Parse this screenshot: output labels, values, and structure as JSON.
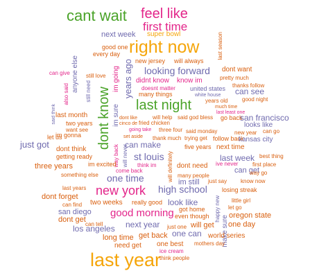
{
  "palette": {
    "green": "#4aa329",
    "magenta": "#e3258a",
    "orange": "#f5a50a",
    "purple": "#6f6aae",
    "dark_orange": "#d95f0e"
  },
  "words": [
    {
      "text": "cant wait",
      "color": "green"
    },
    {
      "text": "feel like",
      "color": "magenta"
    },
    {
      "text": "first time",
      "color": "magenta"
    },
    {
      "text": "next week",
      "color": "purple"
    },
    {
      "text": "super bowl",
      "color": "orange"
    },
    {
      "text": "last season",
      "color": "dark_orange"
    },
    {
      "text": "good one",
      "color": "dark_orange"
    },
    {
      "text": "every day",
      "color": "dark_orange"
    },
    {
      "text": "right now",
      "color": "orange"
    },
    {
      "text": "new jersey",
      "color": "dark_orange"
    },
    {
      "text": "will always",
      "color": "dark_orange"
    },
    {
      "text": "dont want",
      "color": "dark_orange"
    },
    {
      "text": "pretty much",
      "color": "dark_orange"
    },
    {
      "text": "thanks follow",
      "color": "dark_orange"
    },
    {
      "text": "can give",
      "color": "magenta"
    },
    {
      "text": "still love",
      "color": "dark_orange"
    },
    {
      "text": "looking forward",
      "color": "purple"
    },
    {
      "text": "didnt know",
      "color": "magenta"
    },
    {
      "text": "know im",
      "color": "magenta"
    },
    {
      "text": "doesnt matter",
      "color": "magenta"
    },
    {
      "text": "united states",
      "color": "purple"
    },
    {
      "text": "can see",
      "color": "purple"
    },
    {
      "text": "white house",
      "color": "purple"
    },
    {
      "text": "good night",
      "color": "dark_orange"
    },
    {
      "text": "many things",
      "color": "dark_orange"
    },
    {
      "text": "years old",
      "color": "dark_orange"
    },
    {
      "text": "also said",
      "color": "magenta"
    },
    {
      "text": "anyone else",
      "color": "purple"
    },
    {
      "text": "im going",
      "color": "magenta"
    },
    {
      "text": "still need",
      "color": "purple"
    },
    {
      "text": "years ago",
      "color": "purple"
    },
    {
      "text": "last night",
      "color": "green"
    },
    {
      "text": "much time",
      "color": "dark_orange"
    },
    {
      "text": "last least one",
      "color": "magenta"
    },
    {
      "text": "said think",
      "color": "purple"
    },
    {
      "text": "dont know",
      "color": "green"
    },
    {
      "text": "im sure",
      "color": "purple"
    },
    {
      "text": "dont like",
      "color": "dark_orange"
    },
    {
      "text": "will help",
      "color": "dark_orange"
    },
    {
      "text": "said god bless",
      "color": "dark_orange"
    },
    {
      "text": "go back",
      "color": "dark_orange"
    },
    {
      "text": "san francisco",
      "color": "purple"
    },
    {
      "text": "last month",
      "color": "dark_orange"
    },
    {
      "text": "cinco de",
      "color": "dark_orange"
    },
    {
      "text": "fried chicken",
      "color": "dark_orange"
    },
    {
      "text": "looks like",
      "color": "purple"
    },
    {
      "text": "two years",
      "color": "dark_orange"
    },
    {
      "text": "want see",
      "color": "dark_orange"
    },
    {
      "text": "going take",
      "color": "magenta"
    },
    {
      "text": "three four",
      "color": "dark_orange"
    },
    {
      "text": "said monday",
      "color": "dark_orange"
    },
    {
      "text": "new year",
      "color": "dark_orange"
    },
    {
      "text": "can go",
      "color": "dark_orange"
    },
    {
      "text": "let us",
      "color": "dark_orange"
    },
    {
      "text": "im gonna",
      "color": "dark_orange"
    },
    {
      "text": "set aside",
      "color": "dark_orange"
    },
    {
      "text": "thank much",
      "color": "dark_orange"
    },
    {
      "text": "trying get",
      "color": "dark_orange"
    },
    {
      "text": "follow back",
      "color": "dark_orange"
    },
    {
      "text": "just got",
      "color": "purple"
    },
    {
      "text": "kansas city",
      "color": "purple"
    },
    {
      "text": "dont think",
      "color": "dark_orange"
    },
    {
      "text": "can make",
      "color": "purple"
    },
    {
      "text": "five years",
      "color": "dark_orange"
    },
    {
      "text": "next time",
      "color": "dark_orange"
    },
    {
      "text": "getting ready",
      "color": "dark_orange"
    },
    {
      "text": "st louis",
      "color": "purple"
    },
    {
      "text": "last week",
      "color": "purple"
    },
    {
      "text": "best thing",
      "color": "dark_orange"
    },
    {
      "text": "way back",
      "color": "magenta"
    },
    {
      "text": "will never",
      "color": "purple"
    },
    {
      "text": "three years",
      "color": "dark_orange"
    },
    {
      "text": "im excited",
      "color": "dark_orange"
    },
    {
      "text": "think im",
      "color": "magenta"
    },
    {
      "text": "dont need",
      "color": "dark_orange"
    },
    {
      "text": "ive never",
      "color": "magenta"
    },
    {
      "text": "first place",
      "color": "dark_orange"
    },
    {
      "text": "will definitely",
      "color": "dark_orange"
    },
    {
      "text": "can get",
      "color": "purple"
    },
    {
      "text": "way go",
      "color": "dark_orange"
    },
    {
      "text": "something else",
      "color": "dark_orange"
    },
    {
      "text": "come back",
      "color": "magenta"
    },
    {
      "text": "one time",
      "color": "purple"
    },
    {
      "text": "many people",
      "color": "dark_orange"
    },
    {
      "text": "im still",
      "color": "purple"
    },
    {
      "text": "just say",
      "color": "dark_orange"
    },
    {
      "text": "know now",
      "color": "dark_orange"
    },
    {
      "text": "last years",
      "color": "dark_orange"
    },
    {
      "text": "new york",
      "color": "magenta"
    },
    {
      "text": "high school",
      "color": "purple"
    },
    {
      "text": "losing streak",
      "color": "dark_orange"
    },
    {
      "text": "dont forget",
      "color": "dark_orange"
    },
    {
      "text": "two weeks",
      "color": "dark_orange"
    },
    {
      "text": "really good",
      "color": "dark_orange"
    },
    {
      "text": "look like",
      "color": "purple"
    },
    {
      "text": "happy new",
      "color": "purple"
    },
    {
      "text": "little girl",
      "color": "dark_orange"
    },
    {
      "text": "can find",
      "color": "dark_orange"
    },
    {
      "text": "got home",
      "color": "dark_orange"
    },
    {
      "text": "let go",
      "color": "dark_orange"
    },
    {
      "text": "san diego",
      "color": "purple"
    },
    {
      "text": "good morning",
      "color": "magenta"
    },
    {
      "text": "even though",
      "color": "dark_orange"
    },
    {
      "text": "dont get",
      "color": "dark_orange"
    },
    {
      "text": "oregon state",
      "color": "dark_orange"
    },
    {
      "text": "can tell",
      "color": "dark_orange"
    },
    {
      "text": "next year",
      "color": "purple"
    },
    {
      "text": "just one",
      "color": "dark_orange"
    },
    {
      "text": "will get",
      "color": "dark_orange"
    },
    {
      "text": "one day",
      "color": "dark_orange"
    },
    {
      "text": "make sure",
      "color": "purple"
    },
    {
      "text": "los angeles",
      "color": "purple"
    },
    {
      "text": "one can",
      "color": "purple"
    },
    {
      "text": "long time",
      "color": "dark_orange"
    },
    {
      "text": "get back",
      "color": "dark_orange"
    },
    {
      "text": "world series",
      "color": "dark_orange"
    },
    {
      "text": "need get",
      "color": "dark_orange"
    },
    {
      "text": "one best",
      "color": "dark_orange"
    },
    {
      "text": "mothers day",
      "color": "dark_orange"
    },
    {
      "text": "ice cream",
      "color": "magenta"
    },
    {
      "text": "last year",
      "color": "orange"
    },
    {
      "text": "think people",
      "color": "dark_orange"
    }
  ]
}
